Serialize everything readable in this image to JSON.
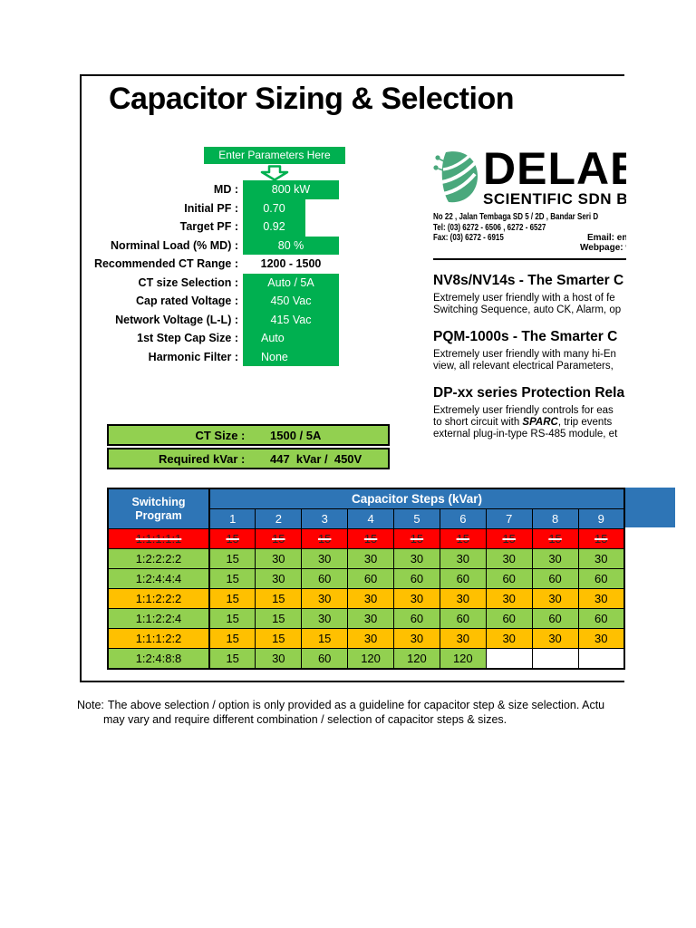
{
  "title": "Capacitor Sizing & Selection",
  "colors": {
    "input_green": "#00B050",
    "result_green": "#92D050",
    "row_orange": "#FFC000",
    "row_red": "#FF0000",
    "header_blue": "#2E75B6",
    "logo_green": "#4AA87C"
  },
  "params": {
    "banner": "Enter Parameters Here",
    "rows": [
      {
        "label": "MD :",
        "value": "800 kW"
      },
      {
        "label": "Initial PF :",
        "value": "0.70"
      },
      {
        "label": "Target PF :",
        "value": "0.92"
      },
      {
        "label": "Norminal Load (% MD) :",
        "value": "80 %"
      },
      {
        "label": "Recommended CT Range :",
        "value": "1200 - 1500"
      },
      {
        "label": "CT size Selection :",
        "value": "Auto / 5A"
      },
      {
        "label": "Cap rated Voltage :",
        "value": "450 Vac"
      },
      {
        "label": "Network Voltage (L-L) :",
        "value": "415 Vac"
      },
      {
        "label": "1st Step Cap Size :",
        "value": "Auto"
      },
      {
        "label": "Harmonic Filter :",
        "value": "None"
      }
    ]
  },
  "results": {
    "ct_size_label": "CT Size : ",
    "ct_size_value": "1500 / 5A",
    "kvar_label": "Required kVar : ",
    "kvar_value": "447  kVar /  450V"
  },
  "vendor": {
    "name": "DELAB",
    "subtitle": "SCIENTIFIC SDN B",
    "address": "No 22 ,  Jalan Tembaga SD 5 / 2D ,  Bandar Seri D",
    "tel": "Tel:  (03) 6272 -  6506 ,  6272 - 6527",
    "fax": "Fax: (03) 6272 - 6915",
    "email": "Email: en",
    "webpage": "Webpage: ww",
    "section1": {
      "heading": "NV8s/NV14s - The Smarter C",
      "line1": "Extremely user friendly with a host of fe",
      "line2": "Switching Sequence, auto CK, Alarm, op"
    },
    "section2": {
      "heading": "PQM-1000s - The Smarter C",
      "line1": "Extremely user friendly with many hi-En",
      "line2": "view, all relevant electrical Parameters,"
    },
    "section3": {
      "heading": "DP-xx series Protection Rela",
      "line1": "Extremely user friendly controls for eas",
      "line2_pre": "to short circuit with ",
      "line2_em": "SPARC",
      "line2_post": ", trip events",
      "line3": "external plug-in-type RS-485 module, et"
    }
  },
  "table": {
    "program_header": "Switching Program",
    "steps_header": "Capacitor Steps (kVar)",
    "step_columns": [
      "1",
      "2",
      "3",
      "4",
      "5",
      "6",
      "7",
      "8",
      "9"
    ],
    "rows": [
      {
        "program": "1:1:1:1:1",
        "style": "red",
        "struck": true,
        "values": [
          "15",
          "15",
          "15",
          "15",
          "15",
          "15",
          "15",
          "15",
          "15"
        ]
      },
      {
        "program": "1:2:2:2:2",
        "style": "green",
        "struck": false,
        "values": [
          "15",
          "30",
          "30",
          "30",
          "30",
          "30",
          "30",
          "30",
          "30"
        ]
      },
      {
        "program": "1:2:4:4:4",
        "style": "green",
        "struck": false,
        "values": [
          "15",
          "30",
          "60",
          "60",
          "60",
          "60",
          "60",
          "60",
          "60"
        ]
      },
      {
        "program": "1:1:2:2:2",
        "style": "orange",
        "struck": false,
        "values": [
          "15",
          "15",
          "30",
          "30",
          "30",
          "30",
          "30",
          "30",
          "30"
        ]
      },
      {
        "program": "1:1:2:2:4",
        "style": "green",
        "struck": false,
        "values": [
          "15",
          "15",
          "30",
          "30",
          "60",
          "60",
          "60",
          "60",
          "60"
        ]
      },
      {
        "program": "1:1:1:2:2",
        "style": "orange",
        "struck": false,
        "values": [
          "15",
          "15",
          "15",
          "30",
          "30",
          "30",
          "30",
          "30",
          "30"
        ]
      },
      {
        "program": "1:2:4:8:8",
        "style": "green",
        "struck": false,
        "values": [
          "15",
          "30",
          "60",
          "120",
          "120",
          "120",
          "",
          "",
          ""
        ]
      }
    ]
  },
  "note": {
    "prefix": "Note:",
    "line1": "The above selection / option is only provided as a guideline for capacitor step & size selection.  Actu",
    "line2": "may vary and require different combination / selection of capacitor steps & sizes."
  }
}
